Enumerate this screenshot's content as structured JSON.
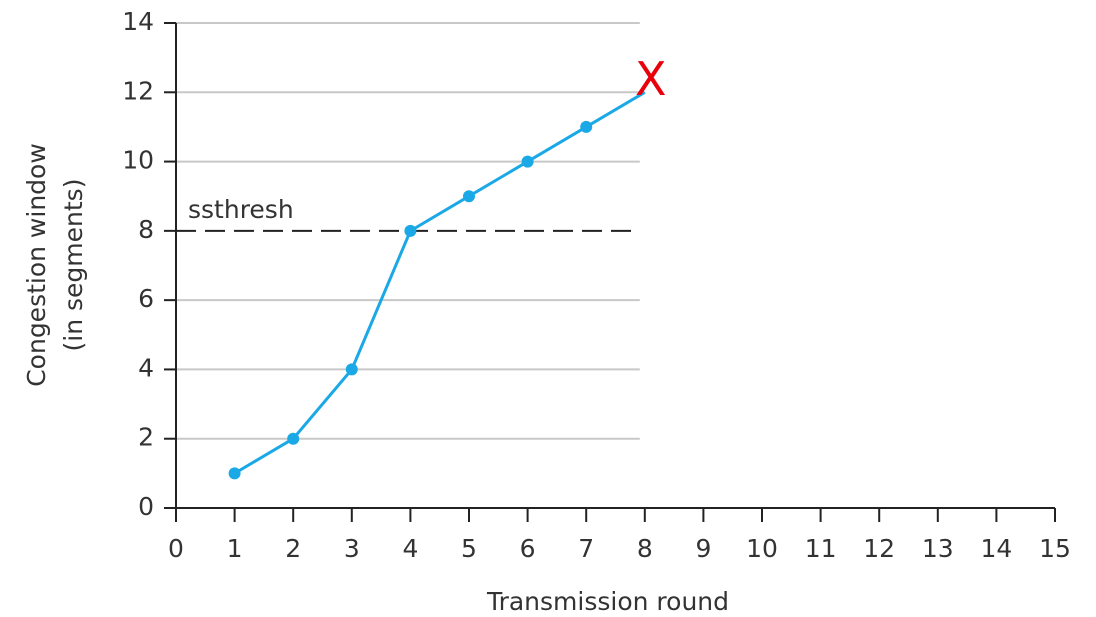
{
  "chart_data": {
    "type": "line",
    "x_label": "Transmission round",
    "y_label": [
      "Congestion window",
      "(in segments)"
    ],
    "x": [
      1,
      2,
      3,
      4,
      5,
      6,
      7,
      8
    ],
    "series": [
      {
        "name": "cwnd",
        "color": "#1ba8e6",
        "values": [
          1,
          2,
          4,
          8,
          9,
          10,
          11,
          12
        ]
      }
    ],
    "xlim": [
      0,
      15
    ],
    "xticks": [
      0,
      1,
      2,
      3,
      4,
      5,
      6,
      7,
      8,
      9,
      10,
      11,
      12,
      13,
      14,
      15
    ],
    "ylim": [
      0,
      14
    ],
    "yticks": [
      0,
      2,
      4,
      6,
      8,
      10,
      12,
      14
    ],
    "grid": true,
    "threshold": {
      "label": "ssthresh",
      "value": 8
    },
    "annotation": {
      "text": "X",
      "color": "#e8000b",
      "x": 8,
      "y": 12
    }
  }
}
